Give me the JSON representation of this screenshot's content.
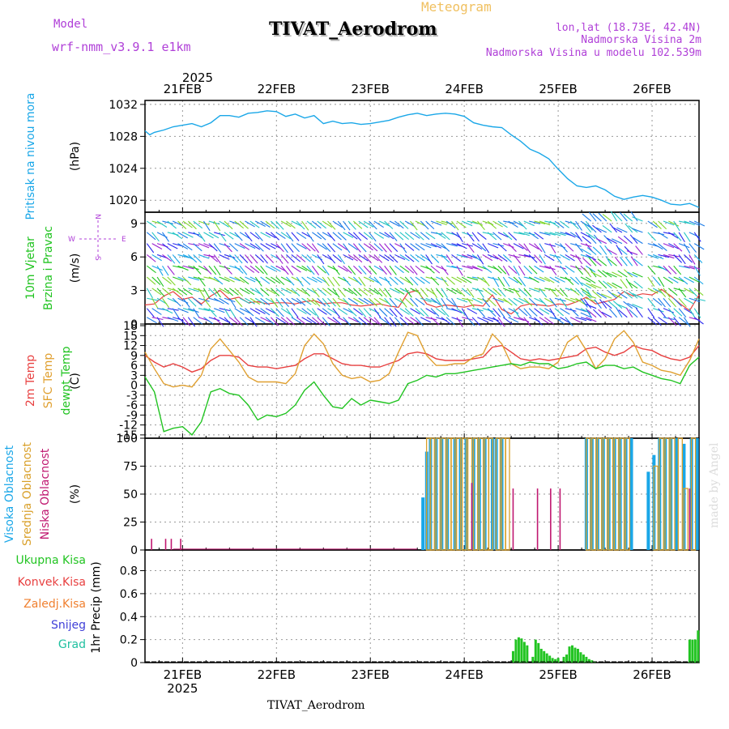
{
  "header": {
    "title": "TIVAT_Aerodrom",
    "meteogram": "Meteogram",
    "model_label": "Model",
    "model_name": "wrf-nmm_v3.9.1 e1km",
    "lonlat": "lon,lat (18.73E, 42.4N)",
    "elev": "Nadmorska Visina 2m",
    "elev_model": "Nadmorska Visina u modelu 102.539m",
    "footer": "TIVAT_Aerodrom",
    "credit": "made by Angel",
    "year": "2025"
  },
  "colors": {
    "pressure": "#1aa7e8",
    "temp2m": "#e84040",
    "sfc": "#e0a030",
    "dewpt": "#22c422",
    "high_cloud": "#1aa7e8",
    "mid_cloud": "#d9a02a",
    "low_cloud": "#c01870",
    "precip": "#22c422",
    "purple": "#b040d8",
    "orange": "#f0c060"
  },
  "chart_data": [
    {
      "type": "line",
      "panel": "pressure",
      "ylabel": "(hPa)",
      "side_label": "Pritisak na nivou mora",
      "xticks": [
        "21FEB",
        "22FEB",
        "23FEB",
        "24FEB",
        "25FEB",
        "26FEB"
      ],
      "yticks": [
        1020,
        1024,
        1028,
        1032
      ],
      "ylim": [
        1018.5,
        1032.5
      ],
      "xlim": [
        0.6,
        6.5
      ],
      "series": [
        {
          "x": [
            0.6,
            0.65,
            0.7,
            0.8,
            0.9,
            1.0,
            1.1,
            1.2,
            1.3,
            1.4,
            1.5,
            1.6,
            1.7,
            1.8,
            1.9,
            2.0,
            2.1,
            2.2,
            2.3,
            2.4,
            2.5,
            2.6,
            2.7,
            2.8,
            2.9,
            3.0,
            3.1,
            3.2,
            3.3,
            3.4,
            3.5,
            3.6,
            3.7,
            3.8,
            3.9,
            4.0,
            4.1,
            4.2,
            4.3,
            4.4,
            4.5,
            4.6,
            4.7,
            4.8,
            4.9,
            5.0,
            5.1,
            5.2,
            5.3,
            5.4,
            5.5,
            5.6,
            5.7,
            5.8,
            5.9,
            6.0,
            6.1,
            6.2,
            6.3,
            6.4,
            6.5
          ],
          "y": [
            1028.7,
            1028.2,
            1028.5,
            1028.8,
            1029.2,
            1029.4,
            1029.6,
            1029.2,
            1029.7,
            1030.6,
            1030.6,
            1030.4,
            1030.9,
            1031.0,
            1031.2,
            1031.1,
            1030.5,
            1030.8,
            1030.3,
            1030.6,
            1029.6,
            1029.9,
            1029.6,
            1029.7,
            1029.5,
            1029.6,
            1029.8,
            1030.0,
            1030.4,
            1030.7,
            1030.9,
            1030.6,
            1030.8,
            1030.9,
            1030.8,
            1030.5,
            1029.7,
            1029.4,
            1029.2,
            1029.1,
            1028.2,
            1027.4,
            1026.4,
            1025.9,
            1025.2,
            1023.9,
            1022.7,
            1021.8,
            1021.6,
            1021.8,
            1021.3,
            1020.5,
            1020.1,
            1020.4,
            1020.6,
            1020.4,
            1020.0,
            1019.5,
            1019.4,
            1019.6,
            1019.1
          ]
        }
      ]
    },
    {
      "type": "line",
      "panel": "wind",
      "ylabel": "(m/s)",
      "side_label": [
        "10m Vjetar",
        "Brzina i Pravac"
      ],
      "compass": {
        "n": "N",
        "s": "S",
        "e": "E",
        "w": "W"
      },
      "yticks": [
        0,
        3,
        6,
        9
      ],
      "ylim": [
        0,
        10
      ],
      "xlim": [
        0.6,
        6.5
      ],
      "series": [
        {
          "name": "wind speed",
          "x": [
            0.6,
            0.7,
            0.8,
            0.9,
            1.0,
            1.1,
            1.2,
            1.3,
            1.4,
            1.5,
            1.6,
            1.7,
            1.8,
            1.9,
            2.0,
            2.1,
            2.2,
            2.3,
            2.4,
            2.5,
            2.6,
            2.7,
            2.8,
            2.9,
            3.0,
            3.1,
            3.2,
            3.3,
            3.4,
            3.5,
            3.6,
            3.7,
            3.8,
            3.9,
            4.0,
            4.1,
            4.2,
            4.3,
            4.4,
            4.5,
            4.6,
            4.7,
            4.8,
            4.9,
            5.0,
            5.1,
            5.2,
            5.3,
            5.4,
            5.5,
            5.6,
            5.7,
            5.8,
            5.9,
            6.0,
            6.1,
            6.2,
            6.3,
            6.4,
            6.5
          ],
          "y": [
            1.7,
            1.8,
            2.5,
            2.9,
            2.2,
            2.4,
            1.8,
            2.5,
            3.0,
            2.2,
            2.4,
            1.9,
            2.0,
            1.8,
            1.9,
            1.9,
            1.8,
            2.0,
            2.1,
            1.8,
            1.9,
            1.9,
            1.7,
            1.6,
            1.7,
            1.8,
            1.6,
            1.5,
            2.8,
            3.0,
            1.8,
            1.5,
            1.7,
            1.6,
            1.5,
            1.7,
            1.6,
            2.6,
            1.3,
            0.9,
            1.6,
            1.8,
            1.7,
            1.6,
            1.8,
            1.7,
            2.0,
            2.4,
            1.8,
            2.0,
            2.2,
            2.9,
            2.5,
            2.7,
            2.6,
            3.1,
            2.5,
            1.8,
            1.2,
            2.6
          ]
        }
      ]
    },
    {
      "type": "line",
      "panel": "temperature",
      "ylabel": "(C)",
      "side_label": [
        "2m Temp",
        "SFC Temp",
        "dewpt Temp"
      ],
      "yticks": [
        -15,
        -12,
        -9,
        -6,
        -3,
        0,
        3,
        6,
        9,
        12,
        15,
        18
      ],
      "ylim": [
        -16,
        18.5
      ],
      "xlim": [
        0.6,
        6.5
      ],
      "series": [
        {
          "name": "2m Temp",
          "x": [
            0.6,
            0.7,
            0.8,
            0.9,
            1.0,
            1.1,
            1.2,
            1.3,
            1.4,
            1.5,
            1.6,
            1.7,
            1.8,
            1.9,
            2.0,
            2.1,
            2.2,
            2.3,
            2.4,
            2.5,
            2.6,
            2.7,
            2.8,
            2.9,
            3.0,
            3.1,
            3.2,
            3.3,
            3.4,
            3.5,
            3.6,
            3.7,
            3.8,
            3.9,
            4.0,
            4.1,
            4.2,
            4.3,
            4.4,
            4.5,
            4.6,
            4.7,
            4.8,
            4.9,
            5.0,
            5.1,
            5.2,
            5.3,
            5.4,
            5.5,
            5.6,
            5.7,
            5.8,
            5.9,
            6.0,
            6.1,
            6.2,
            6.3,
            6.4,
            6.5
          ],
          "y": [
            9.0,
            7.0,
            5.5,
            6.5,
            5.5,
            4.0,
            5.0,
            7.5,
            9.0,
            9.0,
            8.5,
            6.0,
            5.5,
            5.5,
            5.0,
            5.5,
            6.0,
            8.0,
            9.5,
            9.5,
            8.0,
            6.5,
            6.0,
            6.0,
            5.5,
            5.5,
            6.5,
            7.5,
            9.5,
            10.0,
            9.5,
            8.0,
            7.5,
            7.5,
            7.5,
            8.0,
            8.5,
            11.5,
            12.0,
            10.0,
            8.0,
            7.5,
            8.0,
            7.5,
            8.0,
            8.5,
            9.0,
            11.0,
            11.5,
            10.0,
            9.0,
            10.0,
            12.0,
            11.0,
            10.5,
            9.0,
            8.0,
            7.5,
            8.5,
            12.0
          ]
        },
        {
          "name": "SFC Temp",
          "x": [
            0.6,
            0.7,
            0.8,
            0.9,
            1.0,
            1.1,
            1.2,
            1.3,
            1.4,
            1.5,
            1.6,
            1.7,
            1.8,
            1.9,
            2.0,
            2.1,
            2.2,
            2.3,
            2.4,
            2.5,
            2.6,
            2.7,
            2.8,
            2.9,
            3.0,
            3.1,
            3.2,
            3.3,
            3.4,
            3.5,
            3.6,
            3.7,
            3.8,
            3.9,
            4.0,
            4.1,
            4.2,
            4.3,
            4.4,
            4.5,
            4.6,
            4.7,
            4.8,
            4.9,
            5.0,
            5.1,
            5.2,
            5.3,
            5.4,
            5.5,
            5.6,
            5.7,
            5.8,
            5.9,
            6.0,
            6.1,
            6.2,
            6.3,
            6.4,
            6.5
          ],
          "y": [
            10.0,
            5.0,
            0.5,
            -0.5,
            0.0,
            -0.5,
            3.0,
            11.0,
            14.0,
            10.5,
            7.0,
            2.5,
            1.0,
            1.0,
            1.0,
            0.5,
            3.5,
            12.0,
            15.5,
            12.5,
            6.5,
            3.0,
            2.0,
            2.5,
            1.0,
            1.5,
            3.5,
            10.0,
            16.0,
            15.0,
            9.0,
            6.0,
            6.0,
            6.5,
            6.5,
            8.5,
            9.5,
            15.5,
            12.5,
            6.5,
            5.0,
            5.5,
            5.5,
            5.0,
            7.0,
            13.0,
            15.0,
            10.5,
            5.0,
            8.0,
            14.0,
            16.5,
            13.0,
            7.0,
            6.0,
            4.5,
            4.0,
            3.0,
            7.5,
            14.0
          ]
        },
        {
          "name": "dewpt Temp",
          "x": [
            0.6,
            0.7,
            0.8,
            0.9,
            1.0,
            1.1,
            1.2,
            1.3,
            1.4,
            1.5,
            1.6,
            1.7,
            1.8,
            1.9,
            2.0,
            2.1,
            2.2,
            2.3,
            2.4,
            2.5,
            2.6,
            2.7,
            2.8,
            2.9,
            3.0,
            3.1,
            3.2,
            3.3,
            3.4,
            3.5,
            3.6,
            3.7,
            3.8,
            3.9,
            4.0,
            4.1,
            4.2,
            4.3,
            4.4,
            4.5,
            4.6,
            4.7,
            4.8,
            4.9,
            5.0,
            5.1,
            5.2,
            5.3,
            5.4,
            5.5,
            5.6,
            5.7,
            5.8,
            5.9,
            6.0,
            6.1,
            6.2,
            6.3,
            6.4,
            6.5
          ],
          "y": [
            2.5,
            -2.0,
            -14.0,
            -13.0,
            -12.5,
            -15.0,
            -11.0,
            -2.0,
            -1.0,
            -2.5,
            -3.0,
            -6.0,
            -10.5,
            -9.0,
            -9.5,
            -8.5,
            -6.0,
            -1.5,
            1.0,
            -3.0,
            -6.5,
            -7.0,
            -4.0,
            -6.0,
            -4.5,
            -5.0,
            -5.5,
            -4.5,
            0.5,
            1.5,
            3.0,
            2.5,
            3.5,
            3.5,
            4.0,
            4.5,
            5.0,
            5.5,
            6.0,
            6.5,
            6.0,
            7.0,
            6.5,
            6.5,
            5.0,
            5.5,
            6.5,
            7.0,
            5.0,
            6.0,
            6.0,
            5.0,
            5.5,
            4.0,
            3.0,
            2.0,
            1.5,
            0.5,
            6.0,
            8.5
          ]
        }
      ]
    },
    {
      "type": "bar",
      "panel": "cloud",
      "ylabel": "(%)",
      "side_label": [
        "Visoka Oblacnost",
        "Srednja Oblacnost",
        "Niska Oblacnost"
      ],
      "yticks": [
        0,
        25,
        50,
        75,
        100
      ],
      "ylim": [
        0,
        100
      ],
      "xlim": [
        0.6,
        6.5
      ],
      "series": [
        {
          "name": "Visoka Oblacnost",
          "x": [
            3.56,
            3.6,
            3.64,
            3.7,
            3.76,
            3.82,
            3.9,
            3.96,
            4.02,
            4.1,
            4.16,
            4.22,
            4.3,
            4.34,
            4.4,
            5.3,
            5.36,
            5.42,
            5.48,
            5.54,
            5.6,
            5.66,
            5.72,
            5.78,
            5.96,
            6.02,
            6.08,
            6.14,
            6.2,
            6.26,
            6.34,
            6.42,
            6.48
          ],
          "y": [
            47,
            88,
            100,
            100,
            100,
            100,
            100,
            100,
            100,
            100,
            100,
            100,
            100,
            100,
            100,
            100,
            100,
            100,
            100,
            100,
            100,
            100,
            100,
            100,
            70,
            85,
            100,
            100,
            100,
            100,
            95,
            100,
            100
          ]
        },
        {
          "name": "Srednja Oblacnost",
          "x": [
            3.62,
            3.66,
            3.72,
            3.78,
            3.84,
            3.88,
            3.94,
            4.0,
            4.06,
            4.12,
            4.18,
            4.24,
            4.28,
            4.36,
            4.42,
            4.46,
            5.32,
            5.38,
            5.44,
            5.5,
            5.56,
            5.62,
            5.68,
            5.74,
            6.04,
            6.1,
            6.16,
            6.22,
            6.3,
            6.36,
            6.44
          ],
          "y": [
            100,
            100,
            100,
            100,
            100,
            100,
            100,
            100,
            100,
            100,
            100,
            100,
            100,
            100,
            100,
            100,
            100,
            100,
            100,
            100,
            100,
            100,
            100,
            100,
            75,
            100,
            100,
            100,
            100,
            55,
            100
          ]
        },
        {
          "name": "Niska Oblacnost",
          "x": [
            0.67,
            0.82,
            0.88,
            0.98,
            4.08,
            4.52,
            4.78,
            4.92,
            5.02,
            6.4
          ],
          "y": [
            10,
            10,
            10,
            10,
            60,
            55,
            55,
            55,
            55,
            55
          ]
        }
      ]
    },
    {
      "type": "bar",
      "panel": "precip",
      "ylabel": "1hr Precip (mm)",
      "legend": [
        "Ukupna Kisa",
        "Konvek.Kisa",
        "Zaledj.Kisa",
        "Snijeg",
        "Grad"
      ],
      "yticks": [
        0,
        0.2,
        0.4,
        0.6,
        0.8
      ],
      "ylim": [
        0,
        0.98
      ],
      "xlim": [
        0.6,
        6.5
      ],
      "series": [
        {
          "name": "Ukupna Kisa",
          "x": [
            4.52,
            4.55,
            4.58,
            4.61,
            4.64,
            4.67,
            4.73,
            4.76,
            4.79,
            4.82,
            4.85,
            4.88,
            4.91,
            4.94,
            4.97,
            5.0,
            5.06,
            5.09,
            5.12,
            5.15,
            5.18,
            5.21,
            5.24,
            5.27,
            5.3,
            5.33,
            5.36,
            5.39,
            6.4,
            6.43,
            6.46,
            6.49
          ],
          "y": [
            0.1,
            0.2,
            0.22,
            0.21,
            0.18,
            0.15,
            0.05,
            0.2,
            0.17,
            0.12,
            0.1,
            0.08,
            0.06,
            0.04,
            0.03,
            0.04,
            0.05,
            0.07,
            0.14,
            0.15,
            0.13,
            0.12,
            0.09,
            0.07,
            0.05,
            0.03,
            0.02,
            0.01,
            0.2,
            0.2,
            0.2,
            0.28
          ]
        }
      ]
    }
  ]
}
